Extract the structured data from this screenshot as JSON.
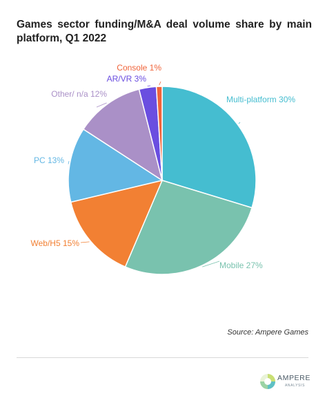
{
  "title": "Games sector funding/M&A deal volume share by main platform, Q1 2022",
  "source": "Source: Ampere Games",
  "logo": {
    "name": "AMPERE",
    "sub": "ANALYSIS"
  },
  "chart_data": {
    "type": "pie",
    "title": "Games sector funding/M&A deal volume share by main platform, Q1 2022",
    "slices": [
      {
        "label": "Multi-platform 30%",
        "value": 30,
        "color": "#45bdd0"
      },
      {
        "label": "Mobile 27%",
        "value": 27,
        "color": "#79c2ae"
      },
      {
        "label": "Web/H5 15%",
        "value": 15,
        "color": "#f28033"
      },
      {
        "label": "PC 13%",
        "value": 13,
        "color": "#63b7e4"
      },
      {
        "label": "Other/ n/a 12%",
        "value": 12,
        "color": "#aa90c7"
      },
      {
        "label": "AR/VR 3%",
        "value": 3,
        "color": "#6a4ee0"
      },
      {
        "label": "Console 1%",
        "value": 1,
        "color": "#f0643a"
      }
    ]
  }
}
